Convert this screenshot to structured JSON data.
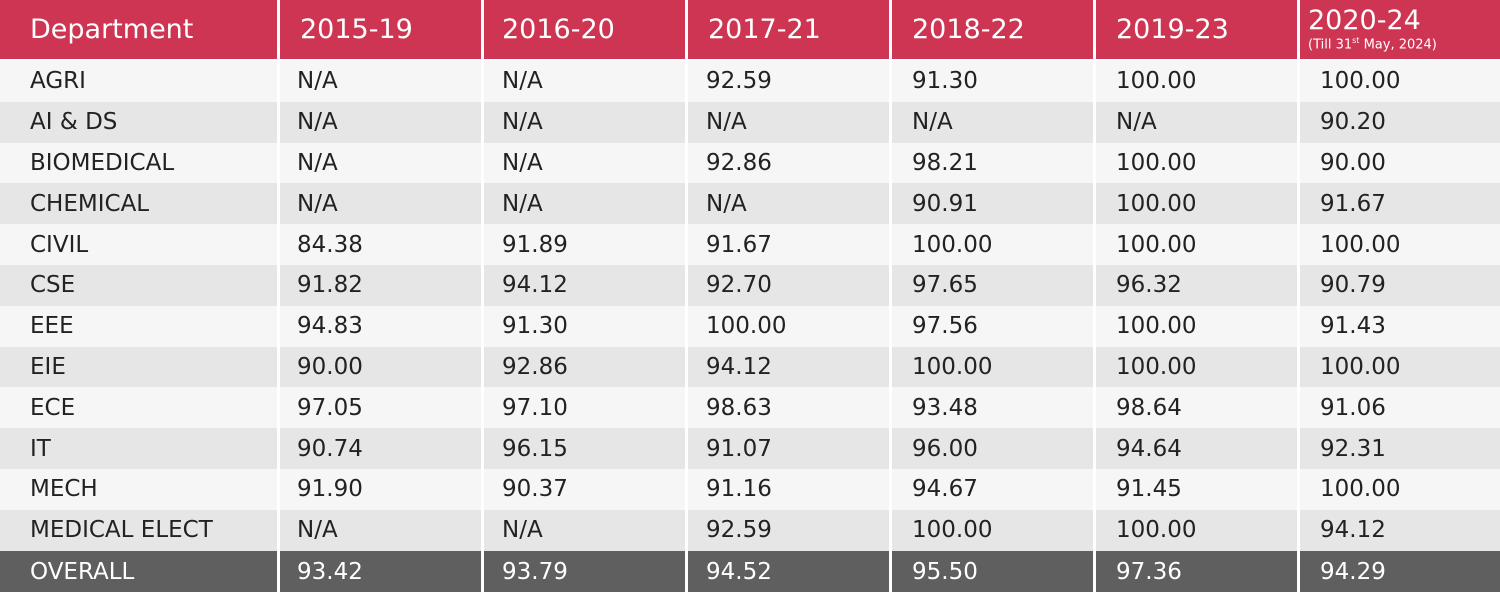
{
  "header": {
    "department": "Department",
    "years": [
      "2015-19",
      "2016-20",
      "2017-21",
      "2018-22",
      "2019-23",
      "2020-24"
    ],
    "last_col_note_prefix": "(Till 31",
    "last_col_note_sup": "st",
    "last_col_note_suffix": " May, 2024)"
  },
  "rows": [
    {
      "dept": "AGRI",
      "values": [
        "N/A",
        "N/A",
        "92.59",
        "91.30",
        "100.00",
        "100.00"
      ]
    },
    {
      "dept": "AI & DS",
      "values": [
        "N/A",
        "N/A",
        "N/A",
        "N/A",
        "N/A",
        "90.20"
      ]
    },
    {
      "dept": "BIOMEDICAL",
      "values": [
        "N/A",
        "N/A",
        "92.86",
        "98.21",
        "100.00",
        "90.00"
      ]
    },
    {
      "dept": "CHEMICAL",
      "values": [
        "N/A",
        "N/A",
        "N/A",
        "90.91",
        "100.00",
        "91.67"
      ]
    },
    {
      "dept": "CIVIL",
      "values": [
        "84.38",
        "91.89",
        "91.67",
        "100.00",
        "100.00",
        "100.00"
      ]
    },
    {
      "dept": "CSE",
      "values": [
        "91.82",
        "94.12",
        "92.70",
        "97.65",
        "96.32",
        "90.79"
      ]
    },
    {
      "dept": "EEE",
      "values": [
        "94.83",
        "91.30",
        "100.00",
        "97.56",
        "100.00",
        "91.43"
      ]
    },
    {
      "dept": "EIE",
      "values": [
        "90.00",
        "92.86",
        "94.12",
        "100.00",
        "100.00",
        "100.00"
      ]
    },
    {
      "dept": "ECE",
      "values": [
        "97.05",
        "97.10",
        "98.63",
        "93.48",
        "98.64",
        "91.06"
      ]
    },
    {
      "dept": "IT",
      "values": [
        "90.74",
        "96.15",
        "91.07",
        "96.00",
        "94.64",
        "92.31"
      ]
    },
    {
      "dept": "MECH",
      "values": [
        "91.90",
        "90.37",
        "91.16",
        "94.67",
        "91.45",
        "100.00"
      ]
    },
    {
      "dept": "MEDICAL ELECT",
      "values": [
        "N/A",
        "N/A",
        "92.59",
        "100.00",
        "100.00",
        "94.12"
      ]
    }
  ],
  "overall": {
    "dept": "OVERALL",
    "values": [
      "93.42",
      "93.79",
      "94.52",
      "95.50",
      "97.36",
      "94.29"
    ]
  },
  "colors": {
    "header_bg": "#cd3553",
    "row_light": "#f6f6f6",
    "row_dark": "#e6e6e6",
    "overall_bg": "#5f5f5f"
  }
}
